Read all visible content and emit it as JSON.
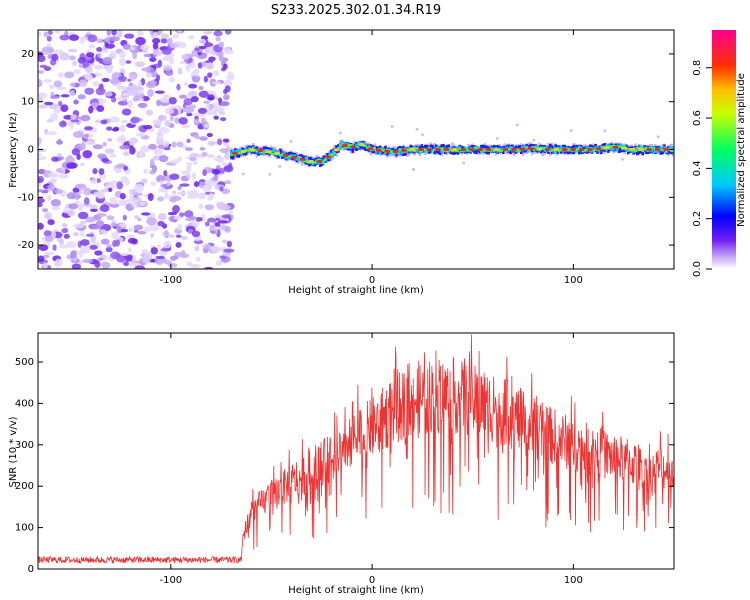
{
  "chart_data": [
    {
      "type": "heatmap",
      "title": "S233.2025.302.01.34.R19",
      "xlabel": "Height of straight line (km)",
      "ylabel": "Frequency (Hz)",
      "xlim": [
        -166,
        150
      ],
      "ylim": [
        -25,
        25
      ],
      "x_ticks": [
        -100,
        0,
        100
      ],
      "x_tick_labels": [
        "-100",
        "0",
        "100"
      ],
      "y_ticks": [
        -20,
        -10,
        0,
        10,
        20
      ],
      "y_tick_labels": [
        "-20",
        "-10",
        "0",
        "10",
        "20"
      ],
      "noise_region_x": [
        -166,
        -70
      ],
      "line_trace": {
        "x": [
          -70,
          -60,
          -50,
          -40,
          -30,
          -25,
          -20,
          -15,
          -10,
          -5,
          0,
          10,
          20,
          30,
          40,
          50,
          60,
          70,
          80,
          90,
          100,
          110,
          120,
          130,
          140,
          150
        ],
        "y": [
          -1,
          0,
          -0.5,
          -1.5,
          -2.5,
          -2.5,
          -1.0,
          1.0,
          0.5,
          1.0,
          0,
          -0.5,
          0,
          0,
          0,
          0,
          0,
          0,
          0.2,
          0,
          0,
          0,
          0.5,
          0,
          0,
          0
        ]
      },
      "colorbar": {
        "label": "Normalized spectral amplitude",
        "range": [
          0.0,
          0.95
        ],
        "ticks": [
          0.0,
          0.2,
          0.4,
          0.6,
          0.8
        ],
        "tick_labels": [
          "0.0",
          "0.2",
          "0.4",
          "0.6",
          "0.8"
        ],
        "colors": [
          "#ffffff",
          "#a070f0",
          "#5010f0",
          "#0000ff",
          "#00e0ff",
          "#00ff40",
          "#ffff00",
          "#ff8000",
          "#ff0000",
          "#ff00a0"
        ]
      }
    },
    {
      "type": "line",
      "xlabel": "Height of straight line (km)",
      "ylabel": "SNR (10 * v/v)",
      "xlim": [
        -166,
        150
      ],
      "ylim": [
        0,
        570
      ],
      "x_ticks": [
        -100,
        0,
        100
      ],
      "x_tick_labels": [
        "-100",
        "0",
        "100"
      ],
      "y_ticks": [
        0,
        100,
        200,
        300,
        400,
        500
      ],
      "y_tick_labels": [
        "0",
        "100",
        "200",
        "300",
        "400",
        "500"
      ],
      "series": [
        {
          "name": "SNR",
          "color": "#ee3333",
          "envelope_x": [
            -166,
            -65,
            -64,
            -60,
            -50,
            -40,
            -30,
            -20,
            -10,
            0,
            10,
            20,
            30,
            40,
            50,
            60,
            70,
            80,
            90,
            100,
            110,
            120,
            130,
            140,
            150
          ],
          "envelope_y": [
            22,
            22,
            80,
            140,
            175,
            210,
            240,
            270,
            310,
            340,
            380,
            410,
            420,
            420,
            405,
            390,
            370,
            340,
            320,
            300,
            285,
            270,
            255,
            245,
            240
          ]
        }
      ]
    }
  ]
}
